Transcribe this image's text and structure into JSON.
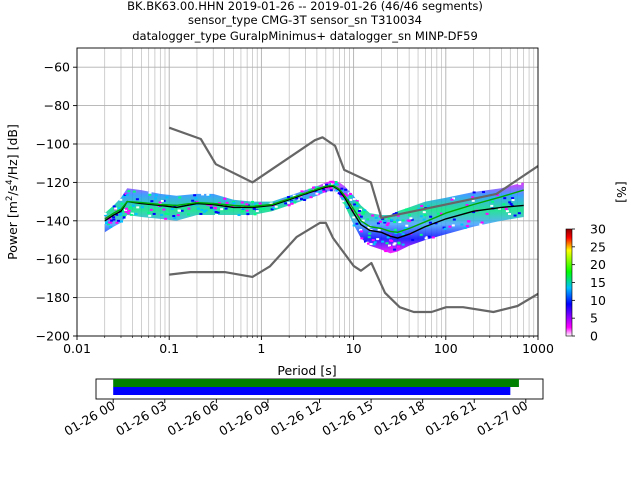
{
  "header": {
    "line1": "BK.BK63.00.HHN   2019-01-26 -- 2019-01-26  (46/46 segments)",
    "line2": "sensor_type CMG-3T sensor_sn T310034",
    "line3": "datalogger_type GuralpMinimus+ datalogger_sn MINP-DF59"
  },
  "chart_data": [
    {
      "type": "heatmap",
      "name": "ppsd",
      "xlabel": "Period [s]",
      "ylabel_parts": [
        "Power [m",
        "2",
        "/s",
        "4",
        "/Hz] [dB]"
      ],
      "xscale": "log",
      "xlim": [
        0.01,
        1000
      ],
      "ylim": [
        -200,
        -50
      ],
      "x_ticks": [
        {
          "value": 0.01,
          "label": "0.01"
        },
        {
          "value": 0.1,
          "label": "0.1"
        },
        {
          "value": 1,
          "label": "1"
        },
        {
          "value": 10,
          "label": "10"
        },
        {
          "value": 100,
          "label": "100"
        },
        {
          "value": 1000,
          "label": "1000"
        }
      ],
      "y_ticks": [
        {
          "value": -60,
          "label": "−60"
        },
        {
          "value": -80,
          "label": "−80"
        },
        {
          "value": -100,
          "label": "−100"
        },
        {
          "value": -120,
          "label": "−120"
        },
        {
          "value": -140,
          "label": "−140"
        },
        {
          "value": -160,
          "label": "−160"
        },
        {
          "value": -180,
          "label": "−180"
        },
        {
          "value": -200,
          "label": "−200"
        }
      ],
      "grid": true,
      "new_high_noise_model": [
        [
          0.1,
          -91.5
        ],
        [
          0.22,
          -97.4
        ],
        [
          0.32,
          -110.5
        ],
        [
          0.8,
          -120
        ],
        [
          3.8,
          -98
        ],
        [
          4.6,
          -96.5
        ],
        [
          6.3,
          -101
        ],
        [
          7.9,
          -113.5
        ],
        [
          15.4,
          -120
        ],
        [
          20,
          -138.5
        ],
        [
          354.8,
          -126
        ],
        [
          1000,
          -111.5
        ]
      ],
      "new_low_noise_model": [
        [
          0.1,
          -168
        ],
        [
          0.17,
          -166.7
        ],
        [
          0.4,
          -166.7
        ],
        [
          0.8,
          -169.2
        ],
        [
          1.24,
          -163.7
        ],
        [
          2.4,
          -148.5
        ],
        [
          4.3,
          -141.1
        ],
        [
          5,
          -141.1
        ],
        [
          6,
          -149
        ],
        [
          10,
          -163.5
        ],
        [
          12,
          -166
        ],
        [
          15.6,
          -162
        ],
        [
          21.9,
          -177.5
        ],
        [
          31.6,
          -185
        ],
        [
          45,
          -187.5
        ],
        [
          70,
          -187.5
        ],
        [
          101,
          -185
        ],
        [
          154,
          -185
        ],
        [
          328,
          -187.5
        ],
        [
          600,
          -184.4
        ],
        [
          1000,
          -178
        ]
      ],
      "mode": [
        [
          0.02,
          -140
        ],
        [
          0.025,
          -137
        ],
        [
          0.03,
          -135
        ],
        [
          0.035,
          -130
        ],
        [
          0.05,
          -131
        ],
        [
          0.08,
          -132
        ],
        [
          0.12,
          -133
        ],
        [
          0.2,
          -131
        ],
        [
          0.3,
          -131.5
        ],
        [
          0.5,
          -133
        ],
        [
          0.8,
          -133
        ],
        [
          1.3,
          -132
        ],
        [
          2,
          -129
        ],
        [
          3,
          -126
        ],
        [
          4,
          -124
        ],
        [
          5,
          -122.5
        ],
        [
          6,
          -122
        ],
        [
          7,
          -124
        ],
        [
          8,
          -128
        ],
        [
          10,
          -136
        ],
        [
          12,
          -142
        ],
        [
          15,
          -145
        ],
        [
          20,
          -146
        ],
        [
          25,
          -148
        ],
        [
          30,
          -149
        ],
        [
          40,
          -147
        ],
        [
          60,
          -143
        ],
        [
          100,
          -139
        ],
        [
          200,
          -135
        ],
        [
          400,
          -133
        ],
        [
          700,
          -132
        ]
      ],
      "mean": [
        [
          0.02,
          -139
        ],
        [
          0.025,
          -136
        ],
        [
          0.03,
          -134
        ],
        [
          0.035,
          -130
        ],
        [
          0.05,
          -130.5
        ],
        [
          0.08,
          -131.5
        ],
        [
          0.12,
          -132
        ],
        [
          0.2,
          -130.5
        ],
        [
          0.3,
          -131
        ],
        [
          0.5,
          -132
        ],
        [
          0.8,
          -132.5
        ],
        [
          1.3,
          -131.5
        ],
        [
          2,
          -128.5
        ],
        [
          3,
          -125.5
        ],
        [
          4,
          -123.5
        ],
        [
          5,
          -122
        ],
        [
          6,
          -121.5
        ],
        [
          7,
          -123.5
        ],
        [
          8,
          -127
        ],
        [
          10,
          -134
        ],
        [
          12,
          -140
        ],
        [
          15,
          -143
        ],
        [
          20,
          -144
        ],
        [
          25,
          -145.5
        ],
        [
          30,
          -146
        ],
        [
          40,
          -144
        ],
        [
          60,
          -140.5
        ],
        [
          100,
          -136
        ],
        [
          200,
          -131.5
        ],
        [
          400,
          -127.5
        ],
        [
          700,
          -124
        ]
      ],
      "density_band": {
        "periods": [
          0.02,
          0.025,
          0.03,
          0.035,
          0.05,
          0.08,
          0.12,
          0.2,
          0.3,
          0.5,
          0.8,
          1.3,
          2,
          3,
          4,
          5,
          6,
          7,
          8,
          10,
          12,
          15,
          20,
          25,
          30,
          40,
          60,
          100,
          200,
          400,
          700
        ],
        "upper": [
          -136,
          -132,
          -128,
          -123,
          -124,
          -126,
          -127,
          -126,
          -126,
          -129,
          -130,
          -130,
          -127,
          -124,
          -122,
          -120,
          -119,
          -120,
          -122,
          -127,
          -132,
          -136,
          -137,
          -137,
          -135,
          -133,
          -130,
          -128,
          -125,
          -123,
          -120
        ],
        "lower": [
          -146,
          -143,
          -141,
          -137,
          -138,
          -139,
          -140,
          -137,
          -137,
          -137,
          -137,
          -135,
          -132,
          -129,
          -127,
          -125,
          -124,
          -127,
          -132,
          -142,
          -149,
          -153,
          -155,
          -157,
          -156,
          -153,
          -150,
          -147,
          -143,
          -140,
          -138
        ]
      },
      "colorbar": {
        "label": "[%]",
        "range": [
          0,
          30
        ],
        "ticks": [
          "0",
          "5",
          "10",
          "15",
          "20",
          "25",
          "30"
        ],
        "colors": [
          "#ffffff",
          "#ff00ff",
          "#0000ff",
          "#00ff00",
          "#ffff00",
          "#ff0000",
          "#8b0000"
        ]
      },
      "colors": {
        "noise_model": "#666666",
        "mode": "#000000",
        "mean": "#00aa00",
        "grid": "#b0b0b0"
      }
    },
    {
      "type": "timeline",
      "name": "data-coverage",
      "x_ticks": [
        "01-26 00",
        "01-26 03",
        "01-26 06",
        "01-26 09",
        "01-26 12",
        "01-26 15",
        "01-26 18",
        "01-26 21",
        "01-27 00"
      ],
      "x_range_hours": [
        -1,
        25
      ],
      "bars": [
        {
          "start_hour": 0,
          "end_hour": 23.6,
          "color": "#008000"
        },
        {
          "start_hour": 0,
          "end_hour": 23.1,
          "color": "#0000ff"
        }
      ]
    }
  ]
}
